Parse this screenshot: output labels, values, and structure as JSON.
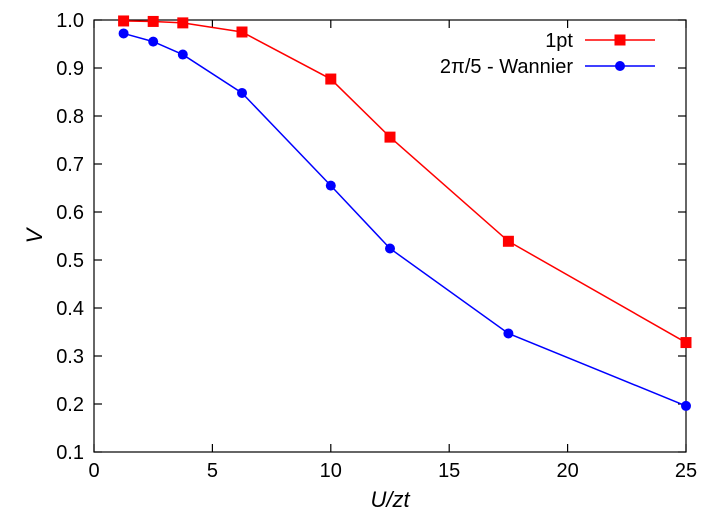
{
  "chart_data": {
    "type": "line",
    "title": "",
    "xlabel": "U/zt",
    "ylabel": "V",
    "xlim": [
      0,
      25
    ],
    "ylim": [
      0.1,
      1.0
    ],
    "xticks": [
      0,
      5,
      10,
      15,
      20,
      25
    ],
    "yticks": [
      0.1,
      0.2,
      0.3,
      0.4,
      0.5,
      0.6,
      0.7,
      0.8,
      0.9,
      1.0
    ],
    "xtick_labels": [
      "0",
      "5",
      "10",
      "15",
      "20",
      "25"
    ],
    "ytick_labels": [
      "0.1",
      "0.2",
      "0.3",
      "0.4",
      "0.5",
      "0.6",
      "0.7",
      "0.8",
      "0.9",
      "1.0"
    ],
    "grid": false,
    "legend_position": "top-right",
    "series": [
      {
        "name": "1pt",
        "color": "#ff0000",
        "marker": "square",
        "x": [
          1.25,
          2.5,
          3.75,
          6.25,
          10,
          12.5,
          17.5,
          25
        ],
        "y": [
          0.998,
          0.997,
          0.994,
          0.975,
          0.877,
          0.756,
          0.539,
          0.328
        ]
      },
      {
        "name": "2π/5 - Wannier",
        "color": "#0000ff",
        "marker": "circle",
        "x": [
          1.25,
          2.5,
          3.75,
          6.25,
          10,
          12.5,
          17.5,
          25
        ],
        "y": [
          0.972,
          0.955,
          0.928,
          0.848,
          0.655,
          0.524,
          0.347,
          0.196
        ]
      }
    ]
  }
}
